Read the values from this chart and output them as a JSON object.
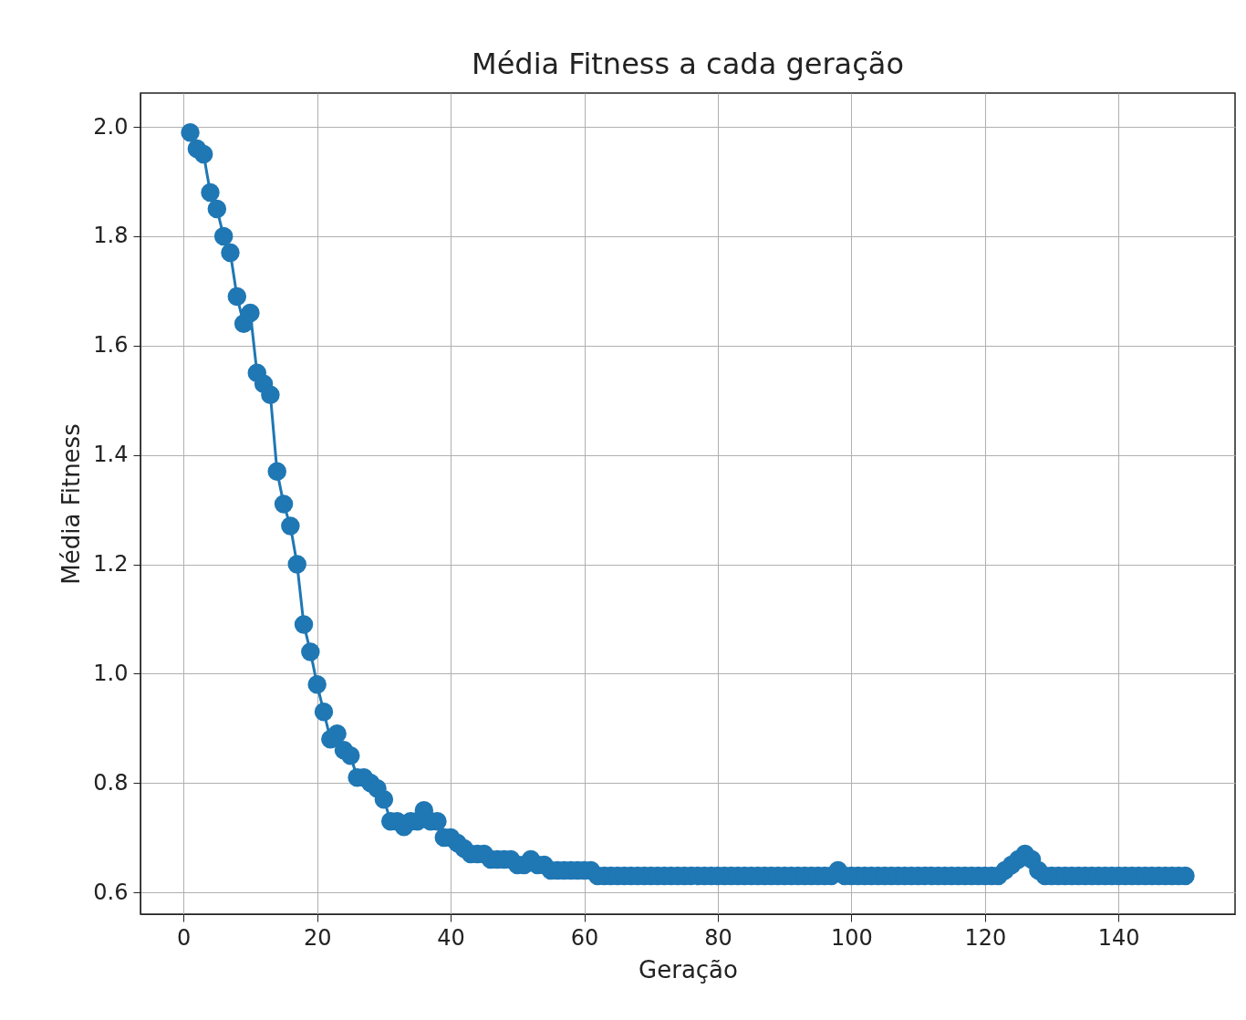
{
  "chart_data": {
    "type": "line",
    "title": "Média Fitness a cada geração",
    "xlabel": "Geração",
    "ylabel": "Média Fitness",
    "x": [
      1,
      2,
      3,
      4,
      5,
      6,
      7,
      8,
      9,
      10,
      11,
      12,
      13,
      14,
      15,
      16,
      17,
      18,
      19,
      20,
      21,
      22,
      23,
      24,
      25,
      26,
      27,
      28,
      29,
      30,
      31,
      32,
      33,
      34,
      35,
      36,
      37,
      38,
      39,
      40,
      41,
      42,
      43,
      44,
      45,
      46,
      47,
      48,
      49,
      50,
      51,
      52,
      53,
      54,
      55,
      56,
      57,
      58,
      59,
      60,
      61,
      62,
      63,
      64,
      65,
      66,
      67,
      68,
      69,
      70,
      71,
      72,
      73,
      74,
      75,
      76,
      77,
      78,
      79,
      80,
      81,
      82,
      83,
      84,
      85,
      86,
      87,
      88,
      89,
      90,
      91,
      92,
      93,
      94,
      95,
      96,
      97,
      98,
      99,
      100,
      101,
      102,
      103,
      104,
      105,
      106,
      107,
      108,
      109,
      110,
      111,
      112,
      113,
      114,
      115,
      116,
      117,
      118,
      119,
      120,
      121,
      122,
      123,
      124,
      125,
      126,
      127,
      128,
      129,
      130,
      131,
      132,
      133,
      134,
      135,
      136,
      137,
      138,
      139,
      140,
      141,
      142,
      143,
      144,
      145,
      146,
      147,
      148,
      149,
      150
    ],
    "series": [
      {
        "color": "#1f77b4",
        "values": [
          1.99,
          1.96,
          1.95,
          1.88,
          1.85,
          1.8,
          1.77,
          1.69,
          1.64,
          1.66,
          1.55,
          1.53,
          1.51,
          1.37,
          1.31,
          1.27,
          1.2,
          1.09,
          1.04,
          0.98,
          0.93,
          0.88,
          0.89,
          0.86,
          0.85,
          0.81,
          0.81,
          0.8,
          0.79,
          0.77,
          0.73,
          0.73,
          0.72,
          0.73,
          0.73,
          0.75,
          0.73,
          0.73,
          0.7,
          0.7,
          0.69,
          0.68,
          0.67,
          0.67,
          0.67,
          0.66,
          0.66,
          0.66,
          0.66,
          0.65,
          0.65,
          0.66,
          0.65,
          0.65,
          0.64,
          0.64,
          0.64,
          0.64,
          0.64,
          0.64,
          0.64,
          0.63,
          0.63,
          0.63,
          0.63,
          0.63,
          0.63,
          0.63,
          0.63,
          0.63,
          0.63,
          0.63,
          0.63,
          0.63,
          0.63,
          0.63,
          0.63,
          0.63,
          0.63,
          0.63,
          0.63,
          0.63,
          0.63,
          0.63,
          0.63,
          0.63,
          0.63,
          0.63,
          0.63,
          0.63,
          0.63,
          0.63,
          0.63,
          0.63,
          0.63,
          0.63,
          0.63,
          0.64,
          0.63,
          0.63,
          0.63,
          0.63,
          0.63,
          0.63,
          0.63,
          0.63,
          0.63,
          0.63,
          0.63,
          0.63,
          0.63,
          0.63,
          0.63,
          0.63,
          0.63,
          0.63,
          0.63,
          0.63,
          0.63,
          0.63,
          0.63,
          0.63,
          0.64,
          0.65,
          0.66,
          0.67,
          0.66,
          0.64,
          0.63,
          0.63,
          0.63,
          0.63,
          0.63,
          0.63,
          0.63,
          0.63,
          0.63,
          0.63,
          0.63,
          0.63,
          0.63,
          0.63,
          0.63,
          0.63,
          0.63,
          0.63,
          0.63,
          0.63,
          0.63,
          0.63
        ]
      }
    ],
    "xlim": [
      -6.45,
      157.45
    ],
    "ylim": [
      0.56,
      2.062
    ],
    "xticks": [
      0,
      20,
      40,
      60,
      80,
      100,
      120,
      140
    ],
    "yticks": [
      {
        "value": 0.6,
        "label": "0.6"
      },
      {
        "value": 0.8,
        "label": "0.8"
      },
      {
        "value": 1.0,
        "label": "1.0"
      },
      {
        "value": 1.2,
        "label": "1.2"
      },
      {
        "value": 1.4,
        "label": "1.4"
      },
      {
        "value": 1.6,
        "label": "1.6"
      },
      {
        "value": 1.8,
        "label": "1.8"
      },
      {
        "value": 2.0,
        "label": "2.0"
      }
    ],
    "grid": true,
    "marker": "circle",
    "line_style": "solid"
  }
}
